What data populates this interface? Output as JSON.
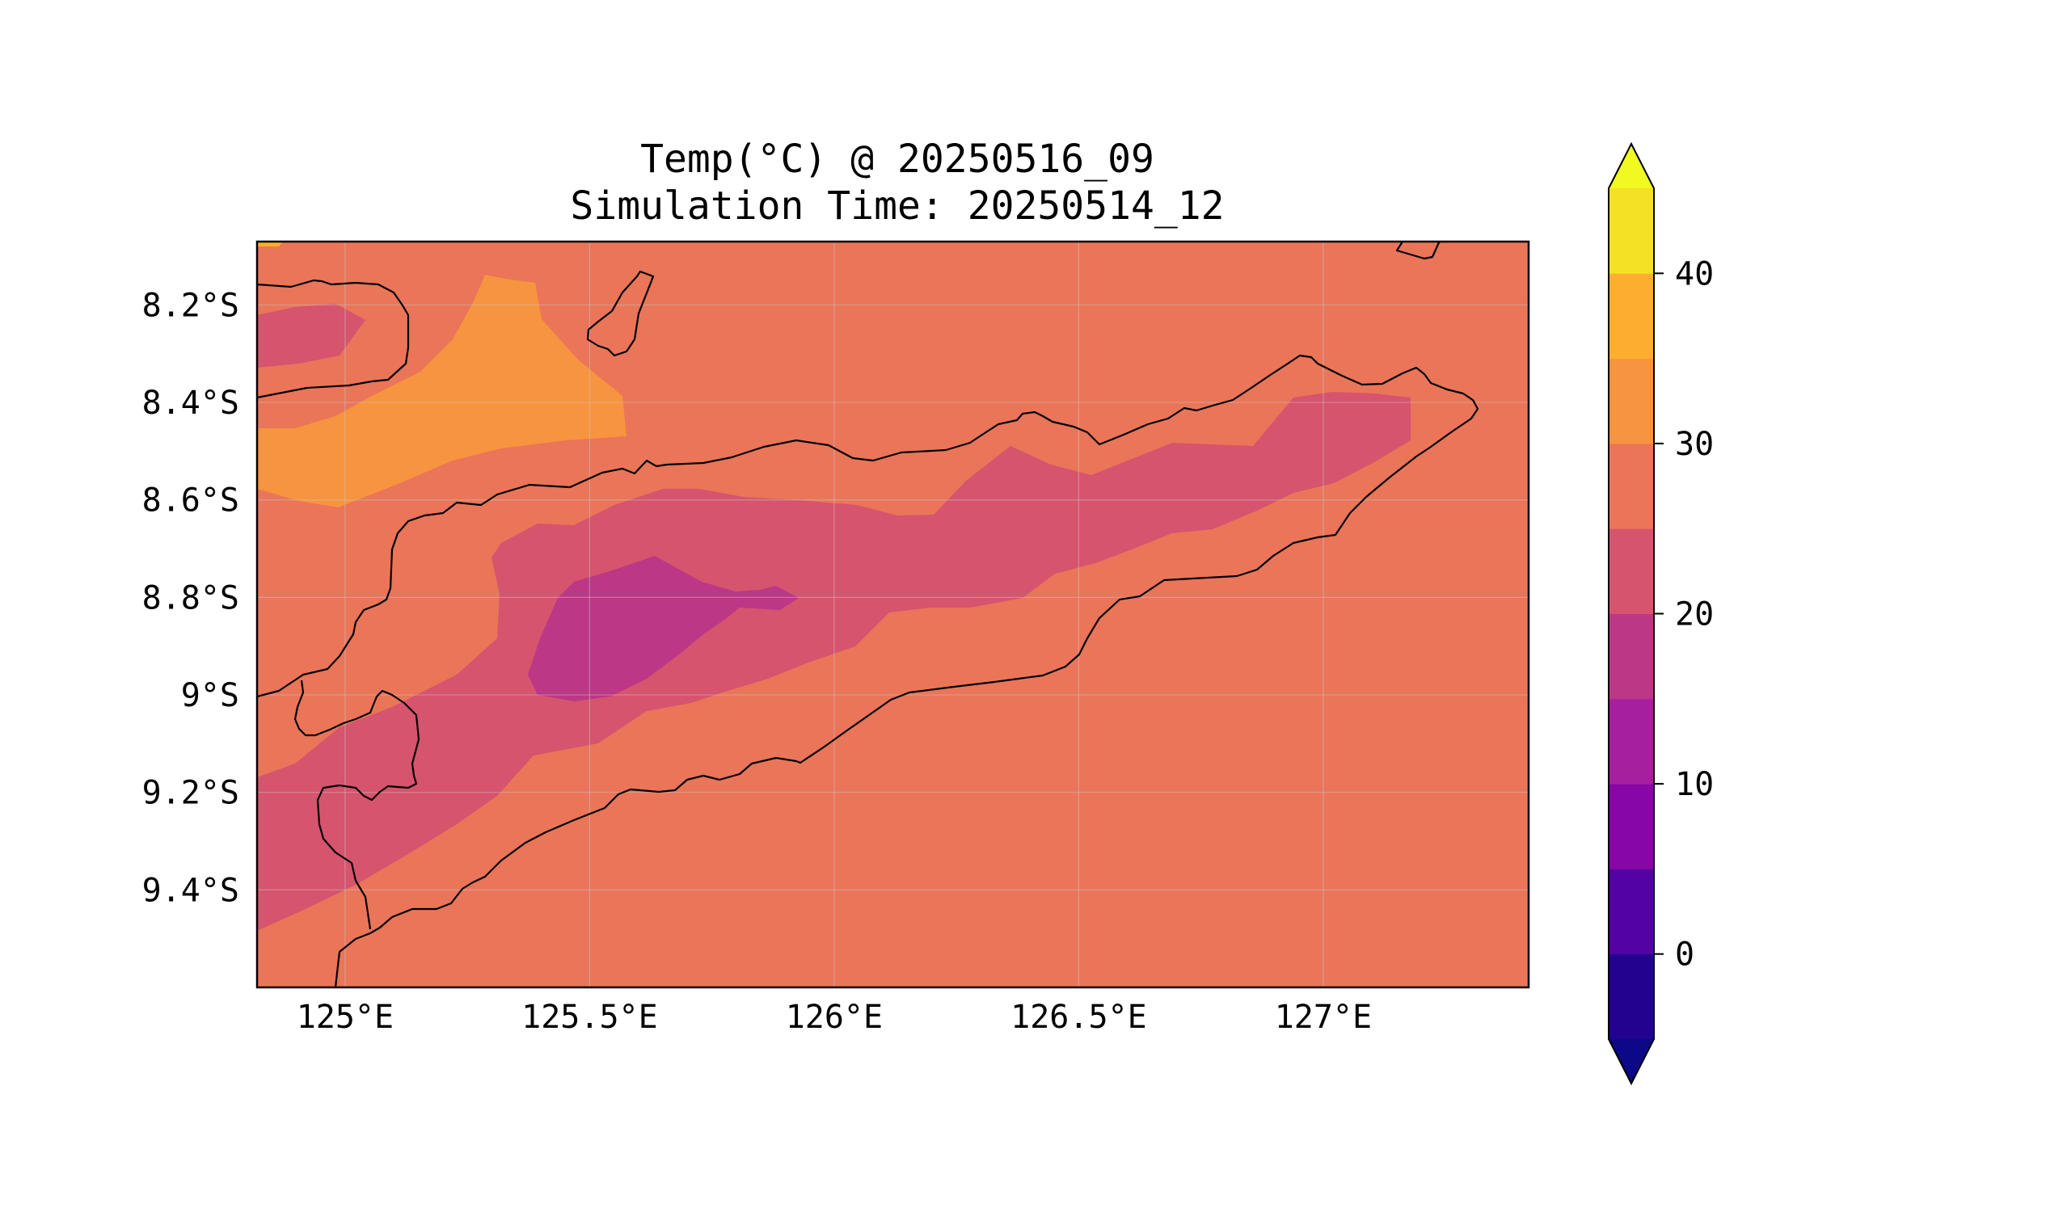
{
  "title": {
    "line1": "Temp(°C) @ 20250516_09",
    "line2": "Simulation Time: 20250514_12"
  },
  "map": {
    "lon_range": [
      124.82,
      127.42
    ],
    "lat_range": [
      -9.6,
      -8.07
    ],
    "lon_ticks": [
      {
        "value": 125.0,
        "label": "125°E"
      },
      {
        "value": 125.5,
        "label": "125.5°E"
      },
      {
        "value": 126.0,
        "label": "126°E"
      },
      {
        "value": 126.5,
        "label": "126.5°E"
      },
      {
        "value": 127.0,
        "label": "127°E"
      }
    ],
    "lat_ticks": [
      {
        "value": -8.2,
        "label": "8.2°S"
      },
      {
        "value": -8.4,
        "label": "8.4°S"
      },
      {
        "value": -8.6,
        "label": "8.6°S"
      },
      {
        "value": -8.8,
        "label": "8.8°S"
      },
      {
        "value": -9.0,
        "label": "9°S"
      },
      {
        "value": -9.2,
        "label": "9.2°S"
      },
      {
        "value": -9.4,
        "label": "9.4°S"
      }
    ],
    "gridlines": true,
    "background_color": "#ea7559",
    "levels": [
      {
        "range": [
          25,
          30
        ],
        "color": "#ea7559"
      },
      {
        "range": [
          30,
          35
        ],
        "color": "#f7943f"
      },
      {
        "range": [
          35,
          40
        ],
        "color": "#fdae2f"
      },
      {
        "range": [
          20,
          25
        ],
        "color": "#d6546e"
      },
      {
        "range": [
          15,
          20
        ],
        "color": "#bd3787"
      }
    ]
  },
  "colorbar": {
    "ticks": [
      {
        "value": 0,
        "label": "0"
      },
      {
        "value": 10,
        "label": "10"
      },
      {
        "value": 20,
        "label": "20"
      },
      {
        "value": 30,
        "label": "30"
      },
      {
        "value": 40,
        "label": "40"
      }
    ],
    "extend": "both",
    "under_color": "#0d0887",
    "over_color": "#f0f921",
    "bands": [
      {
        "range": [
          -5,
          0
        ],
        "color": "#22038f"
      },
      {
        "range": [
          0,
          5
        ],
        "color": "#5302a3"
      },
      {
        "range": [
          5,
          10
        ],
        "color": "#8606a6"
      },
      {
        "range": [
          10,
          15
        ],
        "color": "#a51f9f"
      },
      {
        "range": [
          15,
          20
        ],
        "color": "#bd3787"
      },
      {
        "range": [
          20,
          25
        ],
        "color": "#d6546e"
      },
      {
        "range": [
          25,
          30
        ],
        "color": "#ea7559"
      },
      {
        "range": [
          30,
          35
        ],
        "color": "#f7943f"
      },
      {
        "range": [
          35,
          40
        ],
        "color": "#fdae2f"
      },
      {
        "range": [
          40,
          45
        ],
        "color": "#f4e024"
      }
    ]
  }
}
